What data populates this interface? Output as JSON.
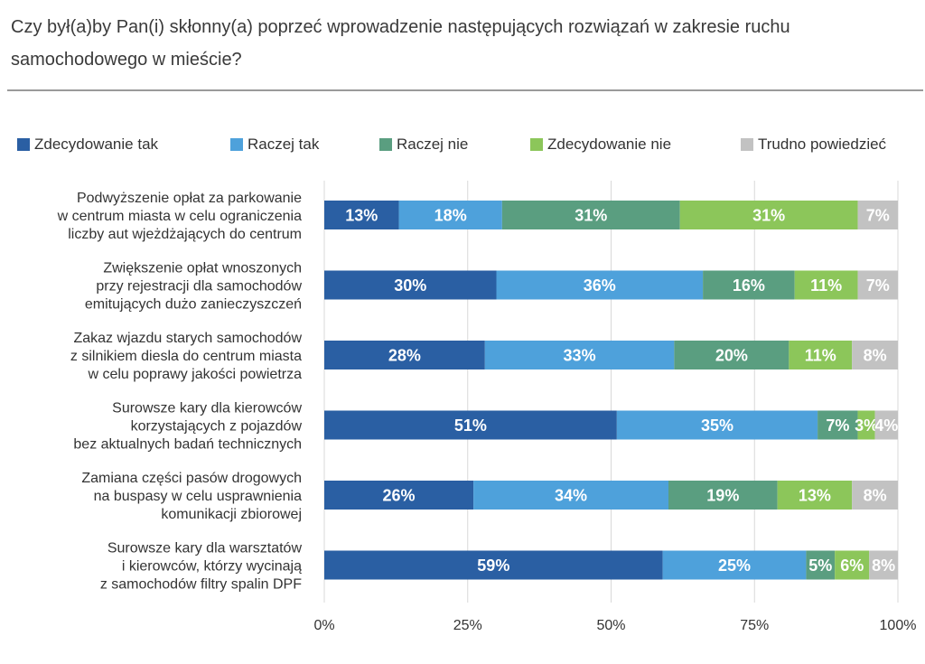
{
  "title": "Czy był(a)by Pan(i) skłonny(a) poprzeć wprowadzenie następujących rozwiązań w zakresie ruchu samochodowego w mieście?",
  "chart_data": {
    "type": "bar",
    "orientation": "horizontal",
    "stacked": true,
    "title": "Czy był(a)by Pan(i) skłonny(a) poprzeć wprowadzenie następujących rozwiązań w zakresie ruchu samochodowego w mieście?",
    "xlim": [
      0,
      100
    ],
    "x_ticks": [
      "0%",
      "25%",
      "50%",
      "75%",
      "100%"
    ],
    "grid": true,
    "legend_position": "top",
    "categories": [
      [
        "Podwyższenie opłat za parkowanie",
        "w centrum miasta w celu ograniczenia",
        "liczby aut wjeżdżających do centrum"
      ],
      [
        "Zwiększenie opłat wnoszonych",
        "przy rejestracji dla samochodów",
        "emitujących dużo zanieczyszczeń"
      ],
      [
        "Zakaz wjazdu starych samochodów",
        "z silnikiem diesla do centrum miasta",
        "w celu poprawy jakości powietrza"
      ],
      [
        "Surowsze kary dla kierowców",
        "korzystających z pojazdów",
        "bez aktualnych badań technicznych"
      ],
      [
        "Zamiana części pasów drogowych",
        "na buspasy w celu usprawnienia",
        "komunikacji zbiorowej"
      ],
      [
        "Surowsze kary dla warsztatów",
        "i kierowców, którzy wycinają",
        "z samochodów filtry spalin DPF"
      ]
    ],
    "series": [
      {
        "name": "Zdecydowanie tak",
        "color": "#2a5fa3",
        "values": [
          13,
          30,
          28,
          51,
          26,
          59
        ],
        "labels": [
          "13%",
          "30%",
          "28%",
          "51%",
          "26%",
          "59%"
        ]
      },
      {
        "name": "Raczej tak",
        "color": "#4ea1db",
        "values": [
          18,
          36,
          33,
          35,
          34,
          25
        ],
        "labels": [
          "18%",
          "36%",
          "33%",
          "35%",
          "34%",
          "25%"
        ]
      },
      {
        "name": "Raczej nie",
        "color": "#5a9e80",
        "values": [
          31,
          16,
          20,
          7,
          19,
          5
        ],
        "labels": [
          "31%",
          "16%",
          "20%",
          "7%",
          "19%",
          "5%"
        ]
      },
      {
        "name": "Zdecydowanie nie",
        "color": "#8cc65a",
        "values": [
          31,
          11,
          11,
          3,
          13,
          6
        ],
        "labels": [
          "31%",
          "11%",
          "11%",
          "3%",
          "13%",
          "6%"
        ]
      },
      {
        "name": "Trudno powiedzieć",
        "color": "#c2c2c2",
        "values": [
          7,
          7,
          8,
          4,
          8,
          8
        ],
        "labels": [
          "7%",
          "7%",
          "8%",
          "4%",
          "8%",
          "8%"
        ]
      }
    ]
  }
}
